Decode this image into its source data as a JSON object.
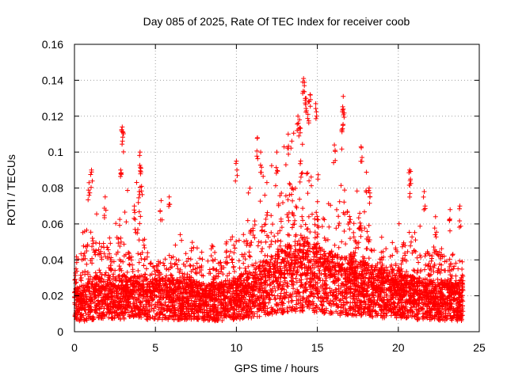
{
  "chart_data": {
    "type": "scatter",
    "title": "Day 085 of 2025, Rate Of TEC Index for receiver coob",
    "xlabel": "GPS time / hours",
    "ylabel": "ROTI / TECUs",
    "xlim": [
      0,
      25
    ],
    "ylim": [
      0,
      0.16
    ],
    "xticks": [
      0,
      5,
      10,
      15,
      20,
      25
    ],
    "xtick_labels": [
      "0",
      "5",
      "10",
      "15",
      "20",
      "25"
    ],
    "yticks": [
      0,
      0.02,
      0.04,
      0.06,
      0.08,
      0.1,
      0.12,
      0.14,
      0.16
    ],
    "ytick_labels": [
      "0",
      "0.02",
      "0.04",
      "0.06",
      "0.08",
      "0.1",
      "0.12",
      "0.14",
      "0.16"
    ],
    "grid": true,
    "marker": "plus",
    "color": "#ff0000",
    "series": [
      {
        "name": "ROTI",
        "envelope": {
          "x": [
            0,
            0.5,
            1,
            1.5,
            2,
            2.5,
            3,
            3.5,
            4,
            4.5,
            5,
            5.5,
            6,
            6.5,
            7,
            7.5,
            8,
            8.5,
            9,
            9.5,
            10,
            10.5,
            11,
            11.5,
            12,
            12.5,
            13,
            13.5,
            14,
            14.5,
            15,
            15.5,
            16,
            16.5,
            17,
            17.5,
            18,
            18.5,
            19,
            19.5,
            20,
            20.5,
            21,
            21.5,
            22,
            22.5,
            23,
            23.5,
            24
          ],
          "typical": [
            0.015,
            0.016,
            0.018,
            0.02,
            0.02,
            0.019,
            0.02,
            0.019,
            0.02,
            0.019,
            0.018,
            0.019,
            0.019,
            0.018,
            0.019,
            0.018,
            0.017,
            0.017,
            0.017,
            0.018,
            0.019,
            0.021,
            0.022,
            0.024,
            0.026,
            0.028,
            0.03,
            0.032,
            0.033,
            0.032,
            0.03,
            0.028,
            0.027,
            0.026,
            0.026,
            0.025,
            0.024,
            0.023,
            0.022,
            0.021,
            0.02,
            0.02,
            0.019,
            0.019,
            0.018,
            0.018,
            0.018,
            0.017,
            0.017
          ],
          "upper": [
            0.04,
            0.055,
            0.08,
            0.065,
            0.072,
            0.06,
            0.105,
            0.058,
            0.095,
            0.06,
            0.05,
            0.06,
            0.055,
            0.055,
            0.05,
            0.05,
            0.045,
            0.045,
            0.05,
            0.055,
            0.07,
            0.075,
            0.085,
            0.085,
            0.095,
            0.1,
            0.11,
            0.115,
            0.13,
            0.125,
            0.1,
            0.08,
            0.085,
            0.12,
            0.085,
            0.08,
            0.095,
            0.06,
            0.065,
            0.055,
            0.06,
            0.07,
            0.08,
            0.05,
            0.07,
            0.06,
            0.055,
            0.06,
            0.05
          ]
        },
        "peaks": [
          {
            "x": 0.1,
            "y": 0.035
          },
          {
            "x": 0.9,
            "y": 0.083
          },
          {
            "x": 1.05,
            "y": 0.09
          },
          {
            "x": 1.9,
            "y": 0.075
          },
          {
            "x": 2.85,
            "y": 0.09
          },
          {
            "x": 2.95,
            "y": 0.114
          },
          {
            "x": 3.0,
            "y": 0.111
          },
          {
            "x": 3.7,
            "y": 0.07
          },
          {
            "x": 4.05,
            "y": 0.1
          },
          {
            "x": 4.1,
            "y": 0.091
          },
          {
            "x": 4.0,
            "y": 0.078
          },
          {
            "x": 5.35,
            "y": 0.073
          },
          {
            "x": 5.85,
            "y": 0.075
          },
          {
            "x": 10.0,
            "y": 0.095
          },
          {
            "x": 11.3,
            "y": 0.108
          },
          {
            "x": 11.5,
            "y": 0.1
          },
          {
            "x": 12.5,
            "y": 0.1
          },
          {
            "x": 13.2,
            "y": 0.11
          },
          {
            "x": 13.8,
            "y": 0.12
          },
          {
            "x": 13.9,
            "y": 0.118
          },
          {
            "x": 14.15,
            "y": 0.141
          },
          {
            "x": 14.2,
            "y": 0.137
          },
          {
            "x": 14.3,
            "y": 0.13
          },
          {
            "x": 14.45,
            "y": 0.128
          },
          {
            "x": 14.55,
            "y": 0.132
          },
          {
            "x": 14.9,
            "y": 0.127
          },
          {
            "x": 16.05,
            "y": 0.104
          },
          {
            "x": 16.6,
            "y": 0.131
          },
          {
            "x": 16.6,
            "y": 0.124
          },
          {
            "x": 16.55,
            "y": 0.113
          },
          {
            "x": 17.7,
            "y": 0.103
          },
          {
            "x": 18.2,
            "y": 0.08
          },
          {
            "x": 20.7,
            "y": 0.09
          },
          {
            "x": 20.75,
            "y": 0.085
          },
          {
            "x": 21.6,
            "y": 0.078
          },
          {
            "x": 22.3,
            "y": 0.064
          },
          {
            "x": 23.2,
            "y": 0.068
          },
          {
            "x": 23.8,
            "y": 0.07
          },
          {
            "x": 9.4,
            "y": 0.05
          },
          {
            "x": 8.5,
            "y": 0.048
          }
        ]
      }
    ]
  }
}
